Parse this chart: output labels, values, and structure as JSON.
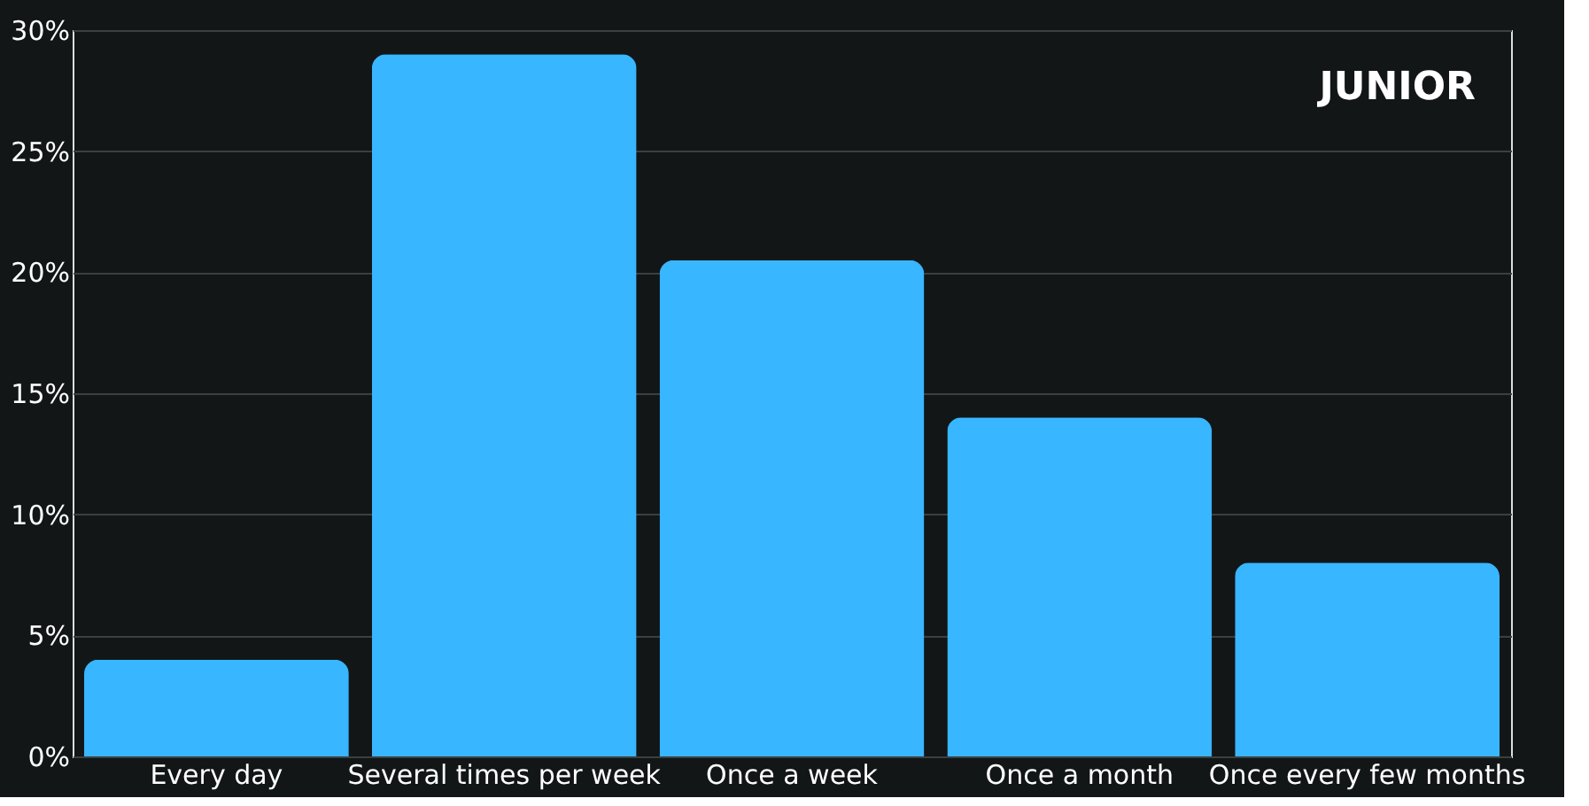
{
  "chart_data": {
    "type": "bar",
    "title": "JUNIOR",
    "categories": [
      "Every day",
      "Several times per week",
      "Once a week",
      "Once a month",
      "Once every few months"
    ],
    "values": [
      4.0,
      29.0,
      20.5,
      14.0,
      8.0
    ],
    "color": "#38b6ff",
    "ylim": [
      0,
      30
    ],
    "yticks": [
      {
        "value": 0,
        "label": "0%"
      },
      {
        "value": 5,
        "label": "5%"
      },
      {
        "value": 10,
        "label": "10%"
      },
      {
        "value": 15,
        "label": "15%"
      },
      {
        "value": 20,
        "label": "20%"
      },
      {
        "value": 25,
        "label": "25%"
      },
      {
        "value": 30,
        "label": "30%"
      }
    ],
    "grid": "y"
  }
}
